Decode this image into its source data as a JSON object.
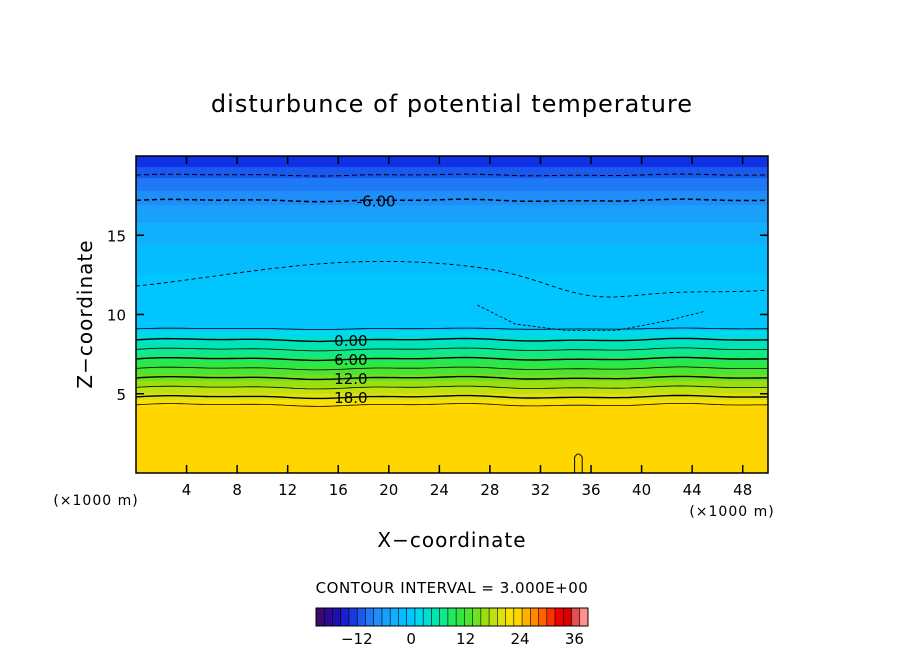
{
  "chart_data": {
    "type": "heatmap",
    "title": "disturbunce of potential temperature",
    "xlabel": "X−coordinate",
    "ylabel": "Z−coordinate",
    "x_unit_left": "(×1000 m)",
    "x_unit_right": "(×1000 m)",
    "xlim": [
      0,
      50
    ],
    "ylim": [
      0,
      20
    ],
    "x_ticks": [
      4,
      8,
      12,
      16,
      20,
      24,
      28,
      32,
      36,
      40,
      44,
      48
    ],
    "y_ticks": [
      5,
      10,
      15
    ],
    "contour_interval_label": "CONTOUR INTERVAL = 3.000E+00",
    "contour_labels": [
      {
        "text": "-6.00",
        "x": 19,
        "z": 17.2
      },
      {
        "text": "0.00",
        "x": 17,
        "z": 8.4
      },
      {
        "text": "6.00",
        "x": 17,
        "z": 7.2
      },
      {
        "text": "12.0",
        "x": 17,
        "z": 6.0
      },
      {
        "text": "18.0",
        "x": 17,
        "z": 4.8
      }
    ],
    "bands": [
      {
        "z0": 19.3,
        "z1": 20.0,
        "color": "#1030e6"
      },
      {
        "z0": 18.6,
        "z1": 19.3,
        "color": "#1a58f0"
      },
      {
        "z0": 17.8,
        "z1": 18.6,
        "color": "#1f78f5"
      },
      {
        "z0": 16.9,
        "z1": 17.8,
        "color": "#1f8ef8"
      },
      {
        "z0": 15.8,
        "z1": 16.9,
        "color": "#1aa0fb"
      },
      {
        "z0": 14.4,
        "z1": 15.8,
        "color": "#10b0fc"
      },
      {
        "z0": 12.6,
        "z1": 14.4,
        "color": "#05bcff"
      },
      {
        "z0": 9.0,
        "z1": 12.6,
        "color": "#00c5ff"
      },
      {
        "z0": 8.6,
        "z1": 9.0,
        "color": "#00d8ec"
      },
      {
        "z0": 8.2,
        "z1": 8.6,
        "color": "#00e0d0"
      },
      {
        "z0": 7.8,
        "z1": 8.2,
        "color": "#00e5b0"
      },
      {
        "z0": 7.4,
        "z1": 7.8,
        "color": "#10e88c"
      },
      {
        "z0": 7.0,
        "z1": 7.4,
        "color": "#20e860"
      },
      {
        "z0": 6.6,
        "z1": 7.0,
        "color": "#30e640"
      },
      {
        "z0": 6.2,
        "z1": 6.6,
        "color": "#4ce430"
      },
      {
        "z0": 5.8,
        "z1": 6.2,
        "color": "#70e020"
      },
      {
        "z0": 5.4,
        "z1": 5.8,
        "color": "#9ae010"
      },
      {
        "z0": 5.0,
        "z1": 5.4,
        "color": "#c0e010"
      },
      {
        "z0": 4.6,
        "z1": 5.0,
        "color": "#e0e010"
      },
      {
        "z0": 4.2,
        "z1": 4.6,
        "color": "#f8e000"
      },
      {
        "z0": 0.0,
        "z1": 4.2,
        "color": "#ffd600"
      }
    ],
    "colorbar": {
      "ticks": [
        -12,
        0,
        12,
        24,
        36
      ],
      "min": -21,
      "max": 39,
      "colors": [
        "#3a0a6e",
        "#2a0a90",
        "#1e10b0",
        "#1820d0",
        "#1a38e0",
        "#1a58f0",
        "#1f78f5",
        "#1f8ef8",
        "#1aa0fb",
        "#10b0fc",
        "#05bcff",
        "#00c8ff",
        "#00d8ec",
        "#00e0d0",
        "#00e5b0",
        "#10e88c",
        "#20e860",
        "#30e640",
        "#4ce430",
        "#70e020",
        "#9ae010",
        "#c0e010",
        "#e0e010",
        "#f8e000",
        "#ffd600",
        "#ffb000",
        "#ff8a00",
        "#ff6000",
        "#ff3000",
        "#f00000",
        "#d80000",
        "#e05050",
        "#ff9090"
      ]
    }
  }
}
